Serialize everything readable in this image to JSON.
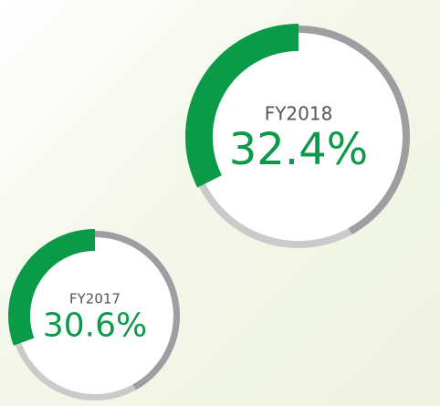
{
  "chart_data": [
    {
      "type": "donut",
      "label": "FY2018",
      "value": 32.4,
      "value_label": "32.4%",
      "color": "#0a9a48"
    },
    {
      "type": "donut",
      "label": "FY2017",
      "value": 30.6,
      "value_label": "30.6%",
      "color": "#0a9a48"
    }
  ]
}
